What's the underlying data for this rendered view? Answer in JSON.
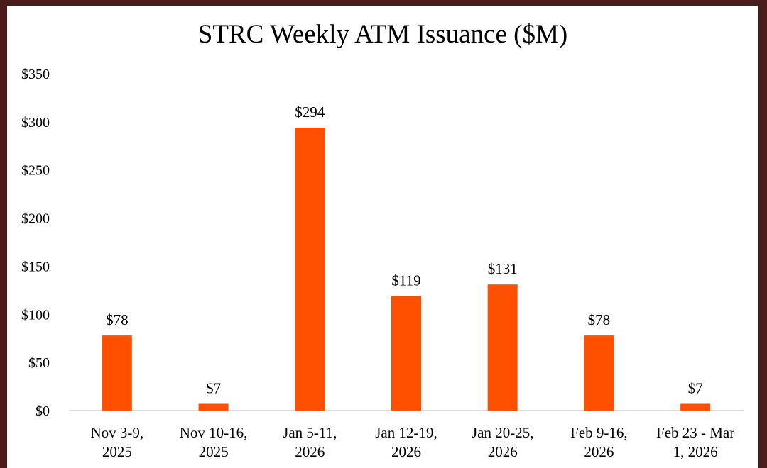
{
  "chart_data": {
    "type": "bar",
    "title": "STRC Weekly ATM Issuance ($M)",
    "xlabel": "",
    "ylabel": "",
    "ylim": [
      0,
      350
    ],
    "yticks": [
      0,
      50,
      100,
      150,
      200,
      250,
      300,
      350
    ],
    "ytick_labels": [
      "$0",
      "$50",
      "$100",
      "$150",
      "$200",
      "$250",
      "$300",
      "$350"
    ],
    "categories": [
      [
        "Nov 3-9,",
        "2025"
      ],
      [
        "Nov 10-16,",
        "2025"
      ],
      [
        "Jan 5-11,",
        "2026"
      ],
      [
        "Jan 12-19,",
        "2026"
      ],
      [
        "Jan 20-25,",
        "2026"
      ],
      [
        "Feb 9-16,",
        "2026"
      ],
      [
        "Feb 23 - Mar",
        "1, 2026"
      ]
    ],
    "values": [
      78,
      7,
      294,
      119,
      131,
      78,
      7
    ],
    "data_labels": [
      "$78",
      "$7",
      "$294",
      "$119",
      "$131",
      "$78",
      "$7"
    ],
    "bar_color": "#ff5000",
    "grid": false,
    "legend": "none"
  }
}
